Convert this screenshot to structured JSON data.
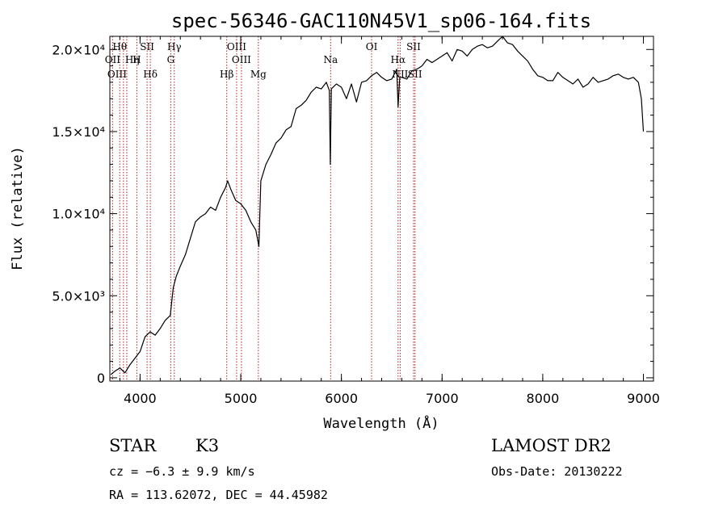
{
  "chart_data": {
    "type": "line",
    "title": "spec-56346-GAC110N45V1_sp06-164.fits",
    "xlabel": "Wavelength (Å)",
    "ylabel": "Flux (relative)",
    "xlim": [
      3700,
      9100
    ],
    "ylim": [
      -200,
      20800
    ],
    "grid": false,
    "x_ticks": [
      4000,
      5000,
      6000,
      7000,
      8000,
      9000
    ],
    "x_tick_labels": [
      "4000",
      "5000",
      "6000",
      "7000",
      "8000",
      "9000"
    ],
    "y_ticks": [
      0,
      5000,
      10000,
      15000,
      20000
    ],
    "y_tick_labels": [
      "0",
      "5.0×10³",
      "1.0×10⁴",
      "1.5×10⁴",
      "2.0×10⁴"
    ],
    "series": [
      {
        "x": [
          3710,
          3750,
          3800,
          3850,
          3900,
          3950,
          4000,
          4050,
          4100,
          4150,
          4200,
          4250,
          4300,
          4330,
          4360,
          4400,
          4450,
          4500,
          4550,
          4600,
          4650,
          4700,
          4750,
          4800,
          4850,
          4870,
          4900,
          4950,
          5000,
          5050,
          5100,
          5150,
          5180,
          5200,
          5250,
          5300,
          5350,
          5400,
          5450,
          5500,
          5550,
          5600,
          5650,
          5700,
          5750,
          5800,
          5850,
          5880,
          5890,
          5900,
          5950,
          6000,
          6050,
          6100,
          6150,
          6200,
          6250,
          6300,
          6350,
          6400,
          6450,
          6500,
          6550,
          6563,
          6580,
          6600,
          6650,
          6700,
          6750,
          6800,
          6850,
          6900,
          6950,
          7000,
          7050,
          7100,
          7150,
          7200,
          7250,
          7300,
          7350,
          7400,
          7450,
          7500,
          7550,
          7600,
          7650,
          7700,
          7750,
          7800,
          7850,
          7900,
          7950,
          8000,
          8050,
          8100,
          8150,
          8200,
          8250,
          8300,
          8350,
          8400,
          8450,
          8500,
          8550,
          8600,
          8650,
          8700,
          8750,
          8800,
          8850,
          8900,
          8950,
          8980,
          9000
        ],
        "values": [
          200,
          400,
          600,
          300,
          800,
          1200,
          1600,
          2500,
          2800,
          2600,
          3000,
          3500,
          3800,
          5500,
          6200,
          6800,
          7500,
          8500,
          9500,
          9800,
          10000,
          10400,
          10200,
          11000,
          11600,
          12000,
          11500,
          10800,
          10600,
          10200,
          9500,
          9000,
          8000,
          12000,
          13000,
          13600,
          14300,
          14600,
          15100,
          15300,
          16400,
          16600,
          16900,
          17400,
          17700,
          17600,
          18000,
          17500,
          13000,
          17600,
          17900,
          17700,
          17000,
          17900,
          16800,
          18000,
          18100,
          18400,
          18600,
          18300,
          18100,
          18200,
          18800,
          16500,
          18300,
          18300,
          18200,
          18700,
          18800,
          19000,
          19400,
          19200,
          19400,
          19600,
          19800,
          19300,
          20000,
          19900,
          19600,
          20000,
          20200,
          20300,
          20100,
          20200,
          20500,
          20800,
          20400,
          20300,
          19900,
          19600,
          19300,
          18800,
          18400,
          18300,
          18100,
          18100,
          18600,
          18300,
          18100,
          17900,
          18200,
          17700,
          17900,
          18300,
          18000,
          18100,
          18200,
          18400,
          18500,
          18300,
          18200,
          18300,
          18000,
          17000,
          15000
        ]
      }
    ],
    "lines": [
      {
        "name": "Hθ",
        "x": 3798
      },
      {
        "name": "OII",
        "x": 3727
      },
      {
        "name": "Hη",
        "x": 3835
      },
      {
        "name": "OIII",
        "x": 3868
      },
      {
        "name": "SII",
        "x": 4070
      },
      {
        "name": "H",
        "x": 3968
      },
      {
        "name": "Hδ",
        "x": 4102
      },
      {
        "name": "Hγ",
        "x": 4340
      },
      {
        "name": "G",
        "x": 4305
      },
      {
        "name": "Hβ",
        "x": 4861
      },
      {
        "name": "OIII",
        "x": 4959
      },
      {
        "name": "OIII",
        "x": 5007
      },
      {
        "name": "Mg",
        "x": 5175
      },
      {
        "name": "Na",
        "x": 5893
      },
      {
        "name": "OI",
        "x": 6300
      },
      {
        "name": "Hα",
        "x": 6563
      },
      {
        "name": "NII",
        "x": 6584
      },
      {
        "name": "SII",
        "x": 6717
      },
      {
        "name": "SII",
        "x": 6731
      }
    ]
  },
  "info": {
    "class_label": "STAR",
    "subclass_label": "K3",
    "survey_label": "LAMOST DR2",
    "redshift_text": "cz = −6.3 ± 9.9 km/s",
    "obs_date_text": "Obs-Date: 20130222",
    "coords_text": "RA = 113.62072, DEC =  44.45982"
  }
}
